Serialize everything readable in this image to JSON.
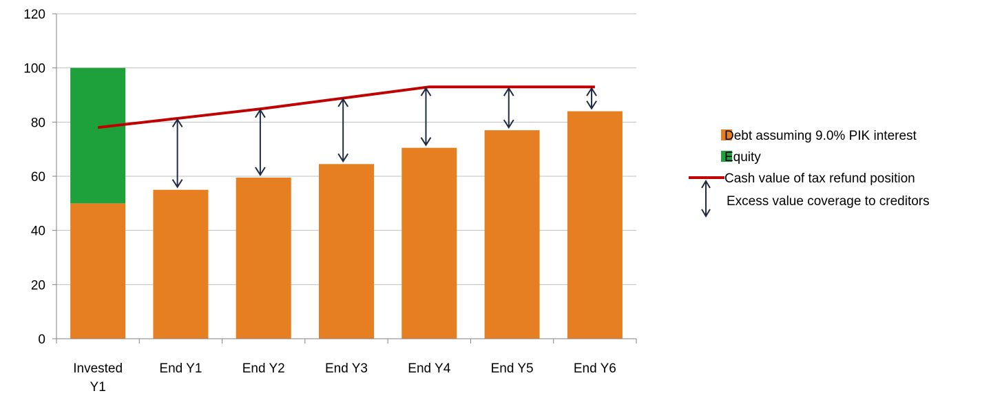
{
  "chart_data": {
    "type": "bar",
    "stacked": true,
    "categories": [
      [
        "Invested",
        "Y1"
      ],
      [
        "End Y1"
      ],
      [
        "End Y2"
      ],
      [
        "End Y3"
      ],
      [
        "End Y4"
      ],
      [
        "End Y5"
      ],
      [
        "End Y6"
      ]
    ],
    "series": [
      {
        "name": "Debt assuming 9.0% PIK interest",
        "kind": "bar",
        "color": "#E67E22",
        "values": [
          50,
          55,
          59.5,
          64.5,
          70.5,
          77,
          84
        ]
      },
      {
        "name": "Equity",
        "kind": "bar",
        "color": "#1EA13A",
        "values": [
          50,
          null,
          null,
          null,
          null,
          null,
          null
        ]
      },
      {
        "name": "Cash value of tax refund position",
        "kind": "line",
        "color": "#C00000",
        "values": [
          78,
          81.5,
          85,
          89,
          93,
          93,
          93
        ]
      },
      {
        "name": "Excess value coverage to creditors",
        "kind": "arrow",
        "color": "#1F2A44",
        "values": [
          null,
          26.5,
          25.5,
          24.5,
          22.5,
          16,
          9
        ]
      }
    ],
    "ylim": [
      0,
      120
    ],
    "yticks": [
      0,
      20,
      40,
      60,
      80,
      100,
      120
    ],
    "grid": true,
    "title": "",
    "xlabel": "",
    "ylabel": "",
    "legend_position": "right"
  }
}
